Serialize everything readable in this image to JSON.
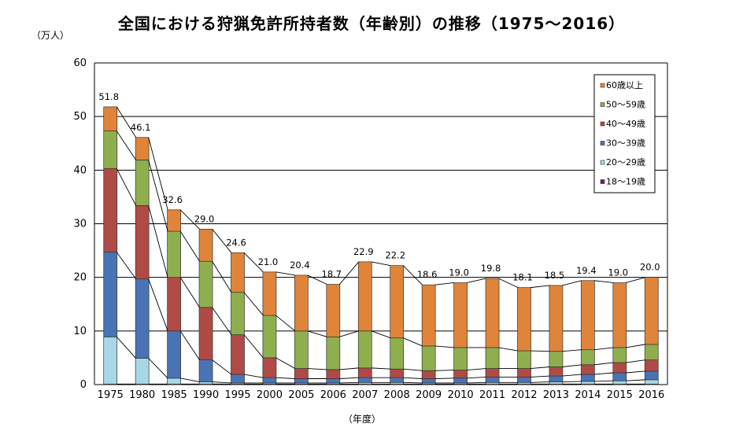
{
  "chart_data": {
    "type": "bar",
    "stacked": true,
    "title": "全国における狩猟免許所持者数（年齢別）の推移（1975～2016）",
    "ylabel": "（万人）",
    "xlabel": "（年度）",
    "ylim": [
      0,
      60
    ],
    "yticks": [
      0,
      10,
      20,
      30,
      40,
      50,
      60
    ],
    "grid": true,
    "legend_position": "top-right",
    "categories": [
      "1975",
      "1980",
      "1985",
      "1990",
      "1995",
      "2000",
      "2005",
      "2006",
      "2007",
      "2008",
      "2009",
      "2010",
      "2011",
      "2012",
      "2013",
      "2014",
      "2015",
      "2016"
    ],
    "series": [
      {
        "name": "18～19歳",
        "color": "#6a1f6e",
        "values": [
          0.1,
          0.1,
          0.1,
          0.1,
          0.1,
          0.1,
          0.1,
          0.1,
          0.1,
          0.1,
          0.1,
          0.1,
          0.1,
          0.1,
          0.1,
          0.1,
          0.1,
          0.1
        ]
      },
      {
        "name": "20～29歳",
        "color": "#a8d8e6",
        "values": [
          8.8,
          4.8,
          1.1,
          0.4,
          0.2,
          0.2,
          0.2,
          0.2,
          0.3,
          0.3,
          0.2,
          0.2,
          0.3,
          0.3,
          0.4,
          0.5,
          0.6,
          0.8
        ]
      },
      {
        "name": "30～39歳",
        "color": "#4a73b4",
        "values": [
          15.8,
          14.8,
          8.8,
          4.1,
          1.6,
          1.0,
          0.8,
          0.8,
          0.9,
          0.9,
          0.8,
          0.9,
          1.0,
          1.0,
          1.1,
          1.3,
          1.5,
          1.6
        ]
      },
      {
        "name": "40～49歳",
        "color": "#b04a46",
        "values": [
          15.6,
          13.7,
          10.0,
          9.8,
          7.4,
          3.7,
          1.9,
          1.7,
          1.8,
          1.6,
          1.5,
          1.5,
          1.6,
          1.6,
          1.7,
          1.8,
          1.9,
          2.1
        ]
      },
      {
        "name": "50～59歳",
        "color": "#8faf4f",
        "values": [
          7.0,
          8.5,
          8.6,
          8.6,
          7.9,
          7.9,
          7.0,
          6.1,
          6.9,
          5.8,
          4.6,
          4.2,
          3.9,
          3.3,
          2.9,
          2.8,
          2.8,
          2.9
        ]
      },
      {
        "name": "60歳以上",
        "color": "#e0843a",
        "values": [
          4.5,
          4.2,
          4.0,
          6.0,
          7.4,
          8.1,
          10.4,
          9.8,
          12.9,
          13.5,
          11.4,
          12.1,
          12.9,
          11.8,
          12.3,
          12.9,
          12.1,
          12.5
        ]
      }
    ],
    "totals": [
      "51.8",
      "46.1",
      "32.6",
      "29.0",
      "24.6",
      "21.0",
      "20.4",
      "18.7",
      "22.9",
      "22.2",
      "18.6",
      "19.0",
      "19.8",
      "18.1",
      "18.5",
      "19.4",
      "19.0",
      "20.0"
    ]
  }
}
